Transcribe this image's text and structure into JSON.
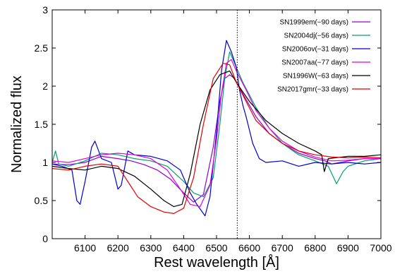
{
  "chart_data": {
    "type": "line",
    "xlabel": "Rest wavelength [Å]",
    "ylabel": "Normalized flux",
    "xlim": [
      6000,
      7000
    ],
    "ylim": [
      0,
      3
    ],
    "xticks": [
      "6100",
      "6200",
      "6300",
      "6400",
      "6500",
      "6600",
      "6700",
      "6800",
      "6900",
      "7000"
    ],
    "yticks": [
      "0",
      "0.5",
      "1",
      "1.5",
      "2",
      "2.5",
      "3"
    ],
    "grid": false,
    "legend_position": "top-right",
    "reference_line": {
      "x": 6563,
      "style": "dotted"
    },
    "series": [
      {
        "name": "SN1999em(−90 days)",
        "color": "#9400d3",
        "points": [
          [
            6000,
            0.98
          ],
          [
            6050,
            0.97
          ],
          [
            6100,
            1.0
          ],
          [
            6150,
            1.08
          ],
          [
            6200,
            1.05
          ],
          [
            6240,
            1.02
          ],
          [
            6280,
            0.97
          ],
          [
            6320,
            0.9
          ],
          [
            6360,
            0.78
          ],
          [
            6400,
            0.6
          ],
          [
            6430,
            0.48
          ],
          [
            6460,
            0.58
          ],
          [
            6490,
            1.2
          ],
          [
            6510,
            1.8
          ],
          [
            6525,
            2.1
          ],
          [
            6540,
            2.15
          ],
          [
            6555,
            2.1
          ],
          [
            6580,
            1.9
          ],
          [
            6620,
            1.6
          ],
          [
            6660,
            1.38
          ],
          [
            6700,
            1.25
          ],
          [
            6750,
            1.12
          ],
          [
            6800,
            1.05
          ],
          [
            6830,
            1.02
          ],
          [
            6850,
            0.98
          ],
          [
            6900,
            1.02
          ],
          [
            6950,
            1.05
          ],
          [
            7000,
            1.05
          ]
        ]
      },
      {
        "name": "SN2004dj(−56 days)",
        "color": "#00a070",
        "points": [
          [
            6000,
            1.0
          ],
          [
            6010,
            1.15
          ],
          [
            6020,
            0.98
          ],
          [
            6050,
            0.95
          ],
          [
            6100,
            1.02
          ],
          [
            6150,
            1.12
          ],
          [
            6200,
            1.1
          ],
          [
            6250,
            1.05
          ],
          [
            6300,
            1.02
          ],
          [
            6350,
            0.95
          ],
          [
            6400,
            0.75
          ],
          [
            6430,
            0.6
          ],
          [
            6460,
            0.55
          ],
          [
            6490,
            0.8
          ],
          [
            6510,
            1.5
          ],
          [
            6525,
            2.1
          ],
          [
            6540,
            2.45
          ],
          [
            6555,
            2.3
          ],
          [
            6580,
            2.05
          ],
          [
            6620,
            1.72
          ],
          [
            6660,
            1.45
          ],
          [
            6700,
            1.25
          ],
          [
            6750,
            1.1
          ],
          [
            6800,
            1.02
          ],
          [
            6840,
            0.95
          ],
          [
            6865,
            0.72
          ],
          [
            6885,
            0.88
          ],
          [
            6900,
            0.95
          ],
          [
            6950,
            1.02
          ],
          [
            7000,
            1.05
          ]
        ]
      },
      {
        "name": "SN2006ov(−31 days)",
        "color": "#0000cd",
        "points": [
          [
            6000,
            0.98
          ],
          [
            6030,
            0.95
          ],
          [
            6060,
            0.9
          ],
          [
            6075,
            0.5
          ],
          [
            6085,
            0.45
          ],
          [
            6100,
            0.75
          ],
          [
            6120,
            1.2
          ],
          [
            6130,
            1.28
          ],
          [
            6150,
            1.05
          ],
          [
            6180,
            1.0
          ],
          [
            6200,
            0.65
          ],
          [
            6210,
            0.7
          ],
          [
            6230,
            1.15
          ],
          [
            6250,
            1.1
          ],
          [
            6300,
            1.08
          ],
          [
            6350,
            1.02
          ],
          [
            6390,
            0.9
          ],
          [
            6420,
            0.6
          ],
          [
            6440,
            0.45
          ],
          [
            6465,
            0.3
          ],
          [
            6480,
            0.55
          ],
          [
            6500,
            1.4
          ],
          [
            6515,
            2.2
          ],
          [
            6530,
            2.6
          ],
          [
            6545,
            2.45
          ],
          [
            6560,
            2.25
          ],
          [
            6570,
            1.95
          ],
          [
            6580,
            1.75
          ],
          [
            6590,
            1.6
          ],
          [
            6610,
            1.25
          ],
          [
            6630,
            1.05
          ],
          [
            6650,
            1.0
          ],
          [
            6700,
            1.02
          ],
          [
            6750,
            0.95
          ],
          [
            6800,
            1.0
          ],
          [
            6850,
            0.98
          ],
          [
            6900,
            1.0
          ],
          [
            6950,
            0.98
          ],
          [
            7000,
            1.0
          ]
        ]
      },
      {
        "name": "SN2007aa(−77 days)",
        "color": "#e000e0",
        "points": [
          [
            6000,
            1.02
          ],
          [
            6050,
            1.0
          ],
          [
            6100,
            1.05
          ],
          [
            6150,
            1.1
          ],
          [
            6200,
            1.12
          ],
          [
            6250,
            1.1
          ],
          [
            6300,
            1.05
          ],
          [
            6350,
            0.9
          ],
          [
            6390,
            0.65
          ],
          [
            6420,
            0.45
          ],
          [
            6450,
            0.42
          ],
          [
            6480,
            0.7
          ],
          [
            6500,
            1.3
          ],
          [
            6515,
            1.9
          ],
          [
            6530,
            2.3
          ],
          [
            6545,
            2.35
          ],
          [
            6560,
            2.2
          ],
          [
            6590,
            1.95
          ],
          [
            6620,
            1.68
          ],
          [
            6660,
            1.45
          ],
          [
            6700,
            1.28
          ],
          [
            6750,
            1.15
          ],
          [
            6800,
            1.07
          ],
          [
            6850,
            1.02
          ],
          [
            6900,
            1.03
          ],
          [
            6950,
            1.05
          ],
          [
            7000,
            1.05
          ]
        ]
      },
      {
        "name": "SN1996W(−63 days)",
        "color": "#000000",
        "points": [
          [
            6000,
            0.95
          ],
          [
            6050,
            0.92
          ],
          [
            6100,
            0.9
          ],
          [
            6150,
            0.95
          ],
          [
            6200,
            0.92
          ],
          [
            6250,
            0.82
          ],
          [
            6300,
            0.65
          ],
          [
            6340,
            0.5
          ],
          [
            6370,
            0.42
          ],
          [
            6395,
            0.45
          ],
          [
            6420,
            0.85
          ],
          [
            6450,
            1.5
          ],
          [
            6480,
            1.95
          ],
          [
            6510,
            2.15
          ],
          [
            6540,
            2.2
          ],
          [
            6560,
            2.05
          ],
          [
            6600,
            1.8
          ],
          [
            6650,
            1.55
          ],
          [
            6700,
            1.38
          ],
          [
            6750,
            1.25
          ],
          [
            6800,
            1.15
          ],
          [
            6820,
            1.1
          ],
          [
            6828,
            0.88
          ],
          [
            6840,
            1.05
          ],
          [
            6900,
            1.08
          ],
          [
            6950,
            1.08
          ],
          [
            7000,
            1.1
          ]
        ]
      },
      {
        "name": "SN2017gmr(−33 days)",
        "color": "#e00000",
        "points": [
          [
            6000,
            0.92
          ],
          [
            6050,
            0.9
          ],
          [
            6100,
            0.95
          ],
          [
            6150,
            0.98
          ],
          [
            6200,
            0.95
          ],
          [
            6230,
            0.75
          ],
          [
            6260,
            0.55
          ],
          [
            6300,
            0.42
          ],
          [
            6340,
            0.35
          ],
          [
            6370,
            0.33
          ],
          [
            6400,
            0.4
          ],
          [
            6430,
            0.8
          ],
          [
            6460,
            1.5
          ],
          [
            6490,
            2.1
          ],
          [
            6520,
            2.3
          ],
          [
            6540,
            2.28
          ],
          [
            6560,
            2.05
          ],
          [
            6590,
            1.8
          ],
          [
            6620,
            1.55
          ],
          [
            6660,
            1.38
          ],
          [
            6700,
            1.25
          ],
          [
            6750,
            1.15
          ],
          [
            6800,
            1.1
          ],
          [
            6850,
            1.07
          ],
          [
            6900,
            1.06
          ],
          [
            6950,
            1.07
          ],
          [
            7000,
            1.06
          ]
        ]
      }
    ]
  }
}
